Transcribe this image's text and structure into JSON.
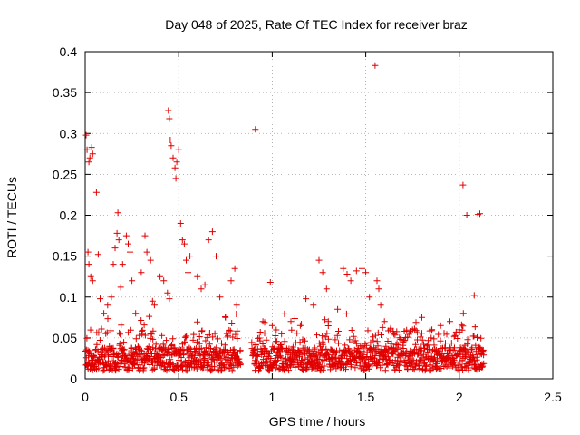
{
  "chart_data": {
    "type": "scatter",
    "title": "Day 048 of 2025, Rate Of TEC Index for receiver braz",
    "xlabel": "GPS time / hours",
    "ylabel": "ROTI / TECUs",
    "xlim": [
      0,
      2.5
    ],
    "ylim": [
      0,
      0.4
    ],
    "xticks": [
      0,
      0.5,
      1,
      1.5,
      2,
      2.5
    ],
    "xtick_labels": [
      "0",
      "0.5",
      "1",
      "1.5",
      "2",
      "2.5"
    ],
    "yticks": [
      0,
      0.05,
      0.1,
      0.15,
      0.2,
      0.25,
      0.3,
      0.35,
      0.4
    ],
    "ytick_labels": [
      "0",
      "0.05",
      "0.1",
      "0.15",
      "0.2",
      "0.25",
      "0.3",
      "0.35",
      "0.4"
    ],
    "grid": true,
    "marker": "+",
    "color": "#e00000",
    "series": [
      {
        "name": "ROTI",
        "segments": [
          [
            0.0,
            0.83
          ],
          [
            0.89,
            2.13
          ]
        ],
        "points": [
          [
            0.005,
            0.298
          ],
          [
            0.01,
            0.28
          ],
          [
            0.02,
            0.265
          ],
          [
            0.025,
            0.27
          ],
          [
            0.035,
            0.283
          ],
          [
            0.04,
            0.275
          ],
          [
            0.06,
            0.228
          ],
          [
            0.015,
            0.155
          ],
          [
            0.02,
            0.14
          ],
          [
            0.03,
            0.125
          ],
          [
            0.04,
            0.12
          ],
          [
            0.07,
            0.152
          ],
          [
            0.08,
            0.098
          ],
          [
            0.1,
            0.08
          ],
          [
            0.12,
            0.09
          ],
          [
            0.14,
            0.1
          ],
          [
            0.15,
            0.14
          ],
          [
            0.16,
            0.16
          ],
          [
            0.17,
            0.178
          ],
          [
            0.175,
            0.203
          ],
          [
            0.18,
            0.17
          ],
          [
            0.19,
            0.112
          ],
          [
            0.2,
            0.14
          ],
          [
            0.22,
            0.175
          ],
          [
            0.23,
            0.165
          ],
          [
            0.24,
            0.155
          ],
          [
            0.25,
            0.12
          ],
          [
            0.27,
            0.08
          ],
          [
            0.3,
            0.13
          ],
          [
            0.32,
            0.175
          ],
          [
            0.33,
            0.155
          ],
          [
            0.35,
            0.145
          ],
          [
            0.36,
            0.095
          ],
          [
            0.37,
            0.09
          ],
          [
            0.4,
            0.125
          ],
          [
            0.42,
            0.12
          ],
          [
            0.44,
            0.105
          ],
          [
            0.45,
            0.098
          ],
          [
            0.445,
            0.328
          ],
          [
            0.45,
            0.318
          ],
          [
            0.455,
            0.292
          ],
          [
            0.46,
            0.285
          ],
          [
            0.47,
            0.27
          ],
          [
            0.48,
            0.258
          ],
          [
            0.485,
            0.245
          ],
          [
            0.49,
            0.265
          ],
          [
            0.5,
            0.28
          ],
          [
            0.51,
            0.19
          ],
          [
            0.52,
            0.17
          ],
          [
            0.53,
            0.165
          ],
          [
            0.54,
            0.145
          ],
          [
            0.55,
            0.13
          ],
          [
            0.56,
            0.15
          ],
          [
            0.6,
            0.125
          ],
          [
            0.62,
            0.11
          ],
          [
            0.64,
            0.115
          ],
          [
            0.66,
            0.17
          ],
          [
            0.68,
            0.18
          ],
          [
            0.7,
            0.15
          ],
          [
            0.72,
            0.1
          ],
          [
            0.75,
            0.075
          ],
          [
            0.78,
            0.12
          ],
          [
            0.8,
            0.135
          ],
          [
            0.81,
            0.09
          ],
          [
            0.91,
            0.305
          ],
          [
            0.95,
            0.07
          ],
          [
            0.99,
            0.118
          ],
          [
            1.0,
            0.065
          ],
          [
            1.05,
            0.055
          ],
          [
            1.1,
            0.07
          ],
          [
            1.15,
            0.065
          ],
          [
            1.18,
            0.098
          ],
          [
            1.22,
            0.09
          ],
          [
            1.25,
            0.145
          ],
          [
            1.27,
            0.13
          ],
          [
            1.29,
            0.11
          ],
          [
            1.3,
            0.07
          ],
          [
            1.35,
            0.085
          ],
          [
            1.38,
            0.135
          ],
          [
            1.4,
            0.128
          ],
          [
            1.42,
            0.12
          ],
          [
            1.45,
            0.132
          ],
          [
            1.48,
            0.135
          ],
          [
            1.5,
            0.13
          ],
          [
            1.52,
            0.1
          ],
          [
            1.55,
            0.383
          ],
          [
            1.56,
            0.12
          ],
          [
            1.57,
            0.11
          ],
          [
            1.58,
            0.09
          ],
          [
            1.6,
            0.07
          ],
          [
            1.65,
            0.055
          ],
          [
            1.7,
            0.045
          ],
          [
            1.75,
            0.06
          ],
          [
            1.8,
            0.075
          ],
          [
            1.85,
            0.05
          ],
          [
            1.9,
            0.065
          ],
          [
            1.95,
            0.07
          ],
          [
            2.0,
            0.06
          ],
          [
            2.02,
            0.237
          ],
          [
            2.04,
            0.2
          ],
          [
            2.08,
            0.102
          ],
          [
            2.1,
            0.201
          ],
          [
            2.11,
            0.202
          ]
        ]
      }
    ]
  }
}
